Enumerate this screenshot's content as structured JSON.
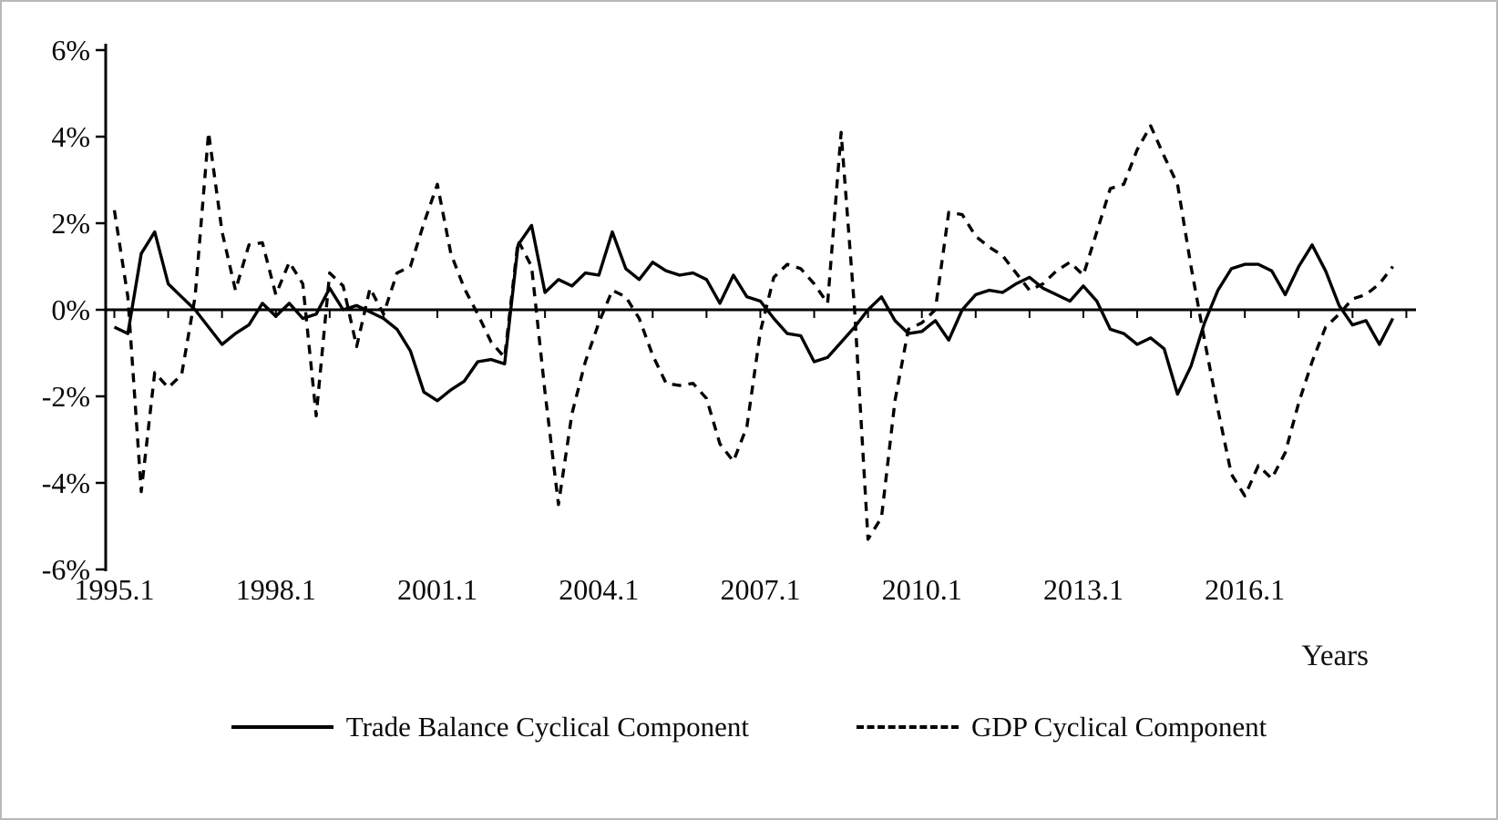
{
  "figure": {
    "title": "",
    "xlabel": "Years"
  },
  "legend": {
    "items": [
      {
        "label": "Trade Balance Cyclical Component",
        "style": "solid",
        "icon": "solid-line-sample"
      },
      {
        "label": "GDP Cyclical Component",
        "style": "dashed",
        "icon": "dashed-line-sample"
      }
    ]
  },
  "chart_data": {
    "type": "line",
    "title": "",
    "xlabel": "Years",
    "ylabel": "",
    "grid": false,
    "legend_position": "bottom",
    "ylim": [
      -6,
      6
    ],
    "y_ticks": [
      6,
      4,
      2,
      0,
      -2,
      -4,
      -6
    ],
    "y_tick_labels": [
      "6%",
      "4%",
      "2%",
      "0%",
      "-2%",
      "-4%",
      "-6%"
    ],
    "x_axis_labeled_ticks": [
      "1995.1",
      "1998.1",
      "2001.1",
      "2004.1",
      "2007.1",
      "2010.1",
      "2013.1",
      "2016.1"
    ],
    "x_labels": [
      "1995.1",
      "1995.2",
      "1995.3",
      "1995.4",
      "1996.1",
      "1996.2",
      "1996.3",
      "1996.4",
      "1997.1",
      "1997.2",
      "1997.3",
      "1997.4",
      "1998.1",
      "1998.2",
      "1998.3",
      "1998.4",
      "1999.1",
      "1999.2",
      "1999.3",
      "1999.4",
      "2000.1",
      "2000.2",
      "2000.3",
      "2000.4",
      "2001.1",
      "2001.2",
      "2001.3",
      "2001.4",
      "2002.1",
      "2002.2",
      "2002.3",
      "2002.4",
      "2003.1",
      "2003.2",
      "2003.3",
      "2003.4",
      "2004.1",
      "2004.2",
      "2004.3",
      "2004.4",
      "2005.1",
      "2005.2",
      "2005.3",
      "2005.4",
      "2006.1",
      "2006.2",
      "2006.3",
      "2006.4",
      "2007.1",
      "2007.2",
      "2007.3",
      "2007.4",
      "2008.1",
      "2008.2",
      "2008.3",
      "2008.4",
      "2009.1",
      "2009.2",
      "2009.3",
      "2009.4",
      "2010.1",
      "2010.2",
      "2010.3",
      "2010.4",
      "2011.1",
      "2011.2",
      "2011.3",
      "2011.4",
      "2012.1",
      "2012.2",
      "2012.3",
      "2012.4",
      "2013.1",
      "2013.2",
      "2013.3",
      "2013.4",
      "2014.1",
      "2014.2",
      "2014.3",
      "2014.4",
      "2015.1",
      "2015.2",
      "2015.3",
      "2015.4",
      "2016.1",
      "2016.2",
      "2016.3",
      "2016.4",
      "2017.1",
      "2017.2",
      "2017.3",
      "2017.4",
      "2018.1",
      "2018.2",
      "2018.3",
      "2018.4"
    ],
    "series": [
      {
        "name": "Trade Balance Cyclical Component",
        "line_style": "solid",
        "color": "#000000",
        "values": [
          -0.4,
          -0.55,
          1.3,
          1.8,
          0.6,
          0.3,
          0.0,
          -0.4,
          -0.8,
          -0.55,
          -0.35,
          0.15,
          -0.15,
          0.15,
          -0.2,
          -0.1,
          0.5,
          0.0,
          0.1,
          -0.05,
          -0.2,
          -0.45,
          -0.95,
          -1.9,
          -2.1,
          -1.85,
          -1.65,
          -1.2,
          -1.15,
          -1.25,
          1.5,
          1.95,
          0.4,
          0.7,
          0.55,
          0.85,
          0.8,
          1.8,
          0.95,
          0.7,
          1.1,
          0.9,
          0.8,
          0.85,
          0.7,
          0.15,
          0.8,
          0.3,
          0.2,
          -0.2,
          -0.55,
          -0.6,
          -1.2,
          -1.1,
          -0.75,
          -0.4,
          0.0,
          0.3,
          -0.25,
          -0.55,
          -0.5,
          -0.25,
          -0.7,
          0.0,
          0.35,
          0.45,
          0.4,
          0.6,
          0.75,
          0.5,
          0.35,
          0.2,
          0.55,
          0.2,
          -0.45,
          -0.55,
          -0.8,
          -0.65,
          -0.9,
          -1.95,
          -1.3,
          -0.3,
          0.45,
          0.95,
          1.05,
          1.05,
          0.9,
          0.35,
          1.0,
          1.5,
          0.9,
          0.1,
          -0.35,
          -0.25,
          -0.8,
          -0.2
        ]
      },
      {
        "name": "GDP Cyclical Component",
        "line_style": "dashed",
        "color": "#000000",
        "values": [
          2.3,
          0.3,
          -4.2,
          -1.45,
          -1.8,
          -1.5,
          0.3,
          4.1,
          1.8,
          0.45,
          1.5,
          1.55,
          0.35,
          1.1,
          0.6,
          -2.45,
          0.85,
          0.55,
          -0.85,
          0.5,
          -0.1,
          0.85,
          1.0,
          2.0,
          2.9,
          1.3,
          0.5,
          -0.1,
          -0.75,
          -1.1,
          1.6,
          1.0,
          -1.9,
          -4.5,
          -2.4,
          -1.2,
          -0.3,
          0.45,
          0.3,
          -0.2,
          -1.05,
          -1.7,
          -1.75,
          -1.7,
          -2.05,
          -3.1,
          -3.5,
          -2.7,
          -0.5,
          0.75,
          1.05,
          0.95,
          0.6,
          0.15,
          4.1,
          0.0,
          -5.3,
          -4.8,
          -2.1,
          -0.45,
          -0.3,
          0.0,
          2.25,
          2.2,
          1.7,
          1.45,
          1.25,
          0.85,
          0.45,
          0.6,
          0.9,
          1.1,
          0.8,
          1.8,
          2.8,
          2.9,
          3.7,
          4.25,
          3.55,
          2.9,
          1.0,
          -0.7,
          -2.3,
          -3.8,
          -4.3,
          -3.6,
          -3.9,
          -3.3,
          -2.15,
          -1.2,
          -0.4,
          -0.1,
          0.25,
          0.35,
          0.6,
          1.0
        ]
      }
    ]
  }
}
